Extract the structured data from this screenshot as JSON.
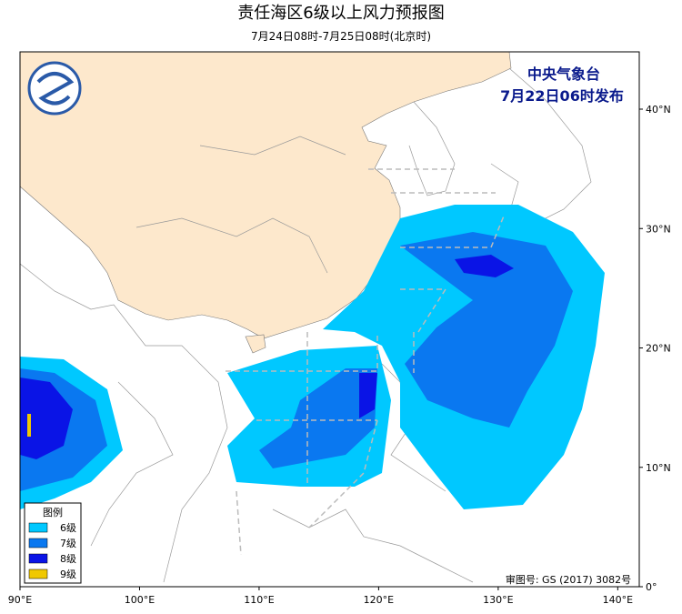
{
  "map": {
    "title": "责任海区6级以上风力预报图",
    "subtitle": "7月24日08时-7月25日08时(北京时)",
    "issuer": "中央气象台",
    "issue_time": "7月22日06时发布",
    "xlim": [
      90,
      141.8
    ],
    "ylim": [
      0,
      44.8
    ],
    "xticks": [
      {
        "value": 90,
        "label": "90°E"
      },
      {
        "value": 100,
        "label": "100°E"
      },
      {
        "value": 110,
        "label": "110°E"
      },
      {
        "value": 120,
        "label": "120°E"
      },
      {
        "value": 130,
        "label": "130°E"
      },
      {
        "value": 140,
        "label": "140°E"
      }
    ],
    "yticks": [
      {
        "value": 0,
        "label": "0°"
      },
      {
        "value": 10,
        "label": "10°N"
      },
      {
        "value": 20,
        "label": "20°N"
      },
      {
        "value": 30,
        "label": "30°N"
      },
      {
        "value": 40,
        "label": "40°N"
      }
    ],
    "legend": {
      "title": "图例",
      "items": [
        {
          "label": "6级",
          "color": "#00c8ff"
        },
        {
          "label": "7级",
          "color": "#0a78f0"
        },
        {
          "label": "8级",
          "color": "#0a14e6"
        },
        {
          "label": "9级",
          "color": "#f0c800"
        }
      ]
    },
    "footer": "审图号: GS (2017) 3082号"
  }
}
